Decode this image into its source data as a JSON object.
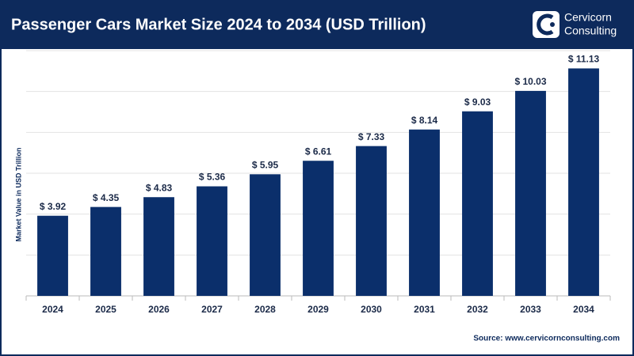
{
  "header": {
    "title": "Passenger Cars Market Size 2024 to 2034 (USD Trillion)",
    "logo_line1": "Cervicorn",
    "logo_line2": "Consulting"
  },
  "chart_data": {
    "type": "bar",
    "y_label": "Market Value in USD Trillion",
    "categories": [
      "2024",
      "2025",
      "2026",
      "2027",
      "2028",
      "2029",
      "2030",
      "2031",
      "2032",
      "2033",
      "2034"
    ],
    "values": [
      3.92,
      4.35,
      4.83,
      5.36,
      5.95,
      6.61,
      7.33,
      8.14,
      9.03,
      10.03,
      11.13
    ],
    "value_labels": [
      "$ 3.92",
      "$ 4.35",
      "$ 4.83",
      "$ 5.36",
      "$ 5.95",
      "$ 6.61",
      "$ 7.33",
      "$ 8.14",
      "$ 9.03",
      "$ 10.03",
      "$ 11.13"
    ],
    "color": "#0b2f6b",
    "ylim": [
      0,
      12
    ],
    "yticks": [
      0,
      2,
      4,
      6,
      8,
      10,
      12
    ],
    "grid": true
  },
  "footer": {
    "source": "Source: www.cervicornconsulting.com"
  }
}
